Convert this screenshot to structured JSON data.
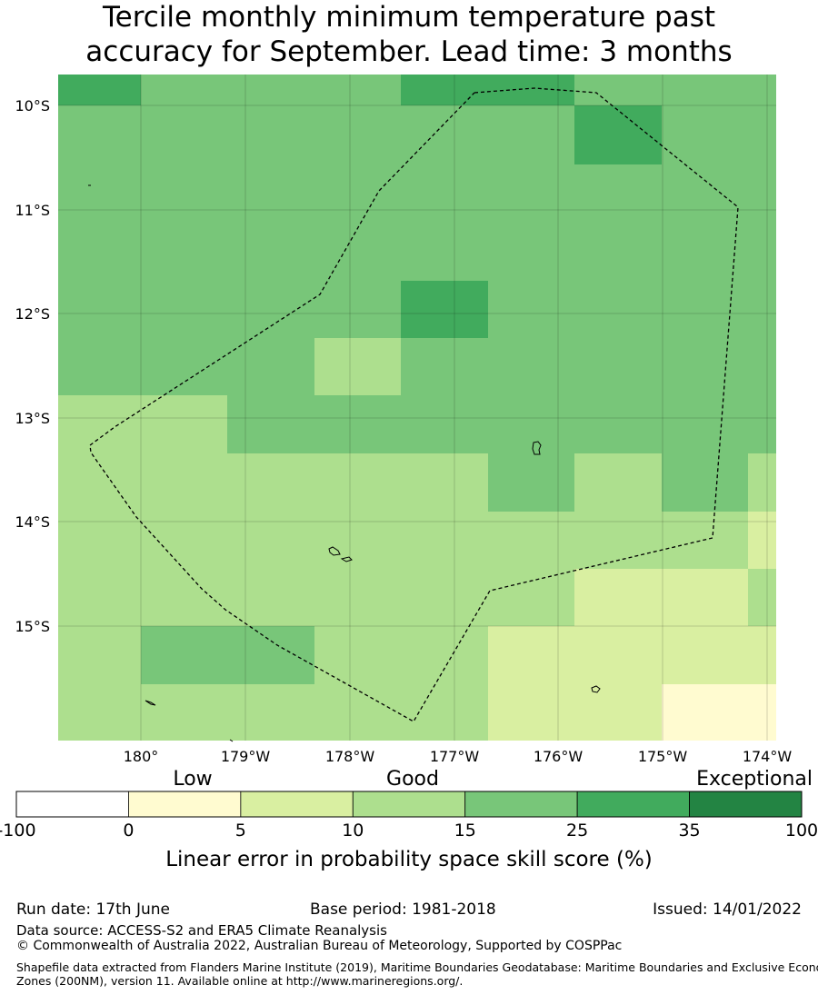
{
  "title": {
    "line1": "Tercile monthly minimum temperature past",
    "line2": "accuracy for September. Lead time: 3 months"
  },
  "map": {
    "lon_ticks": [
      "180°",
      "179°W",
      "178°W",
      "177°W",
      "176°W",
      "175°W",
      "174°W"
    ],
    "lat_ticks": [
      "10°S",
      "11°S",
      "12°S",
      "13°S",
      "14°S",
      "15°S"
    ],
    "lon_range": [
      179.2,
      185.7
    ],
    "lat_range": [
      -16.1,
      -9.7
    ],
    "colors": {
      "c0": "#fffbd0",
      "c1": "#d9efa1",
      "c2": "#addf8e",
      "c3": "#78c679",
      "c4": "#41ab5d",
      "c5": "#238443"
    },
    "grid": [
      [
        "c4",
        "c3",
        "c3",
        "c3",
        "c4",
        "c4",
        "c3",
        "c3",
        "c3"
      ],
      [
        "c3",
        "c3",
        "c3",
        "c3",
        "c3",
        "c3",
        "c4",
        "c3",
        "c3"
      ],
      [
        "c3",
        "c3",
        "c3",
        "c3",
        "c3",
        "c3",
        "c3",
        "c3",
        "c3"
      ],
      [
        "c3",
        "c3",
        "c3",
        "c3",
        "c3",
        "c3",
        "c3",
        "c3",
        "c3"
      ],
      [
        "c3",
        "c3",
        "c3",
        "c3",
        "c4",
        "c3",
        "c3",
        "c3",
        "c3"
      ],
      [
        "c3",
        "c3",
        "c3",
        "c2",
        "c3",
        "c3",
        "c3",
        "c3",
        "c3"
      ],
      [
        "c2",
        "c2",
        "c3",
        "c3",
        "c3",
        "c3",
        "c3",
        "c3",
        "c3"
      ],
      [
        "c2",
        "c2",
        "c2",
        "c2",
        "c2",
        "c3",
        "c2",
        "c3",
        "c2"
      ],
      [
        "c2",
        "c2",
        "c2",
        "c2",
        "c2",
        "c2",
        "c2",
        "c2",
        "c1"
      ],
      [
        "c2",
        "c2",
        "c2",
        "c2",
        "c2",
        "c2",
        "c1",
        "c1",
        "c2"
      ],
      [
        "c2",
        "c3",
        "c3",
        "c2",
        "c2",
        "c1",
        "c1",
        "c1",
        "c1"
      ],
      [
        "c2",
        "c2",
        "c2",
        "c2",
        "c2",
        "c1",
        "c1",
        "c0",
        "c0"
      ]
    ]
  },
  "colorbar": {
    "categories": [
      "Low",
      "Good",
      "Exceptional"
    ],
    "boundaries": [
      "-100",
      "0",
      "5",
      "10",
      "15",
      "25",
      "35",
      "100"
    ],
    "colors": [
      "#ffffff",
      "#fffbd0",
      "#d9efa1",
      "#addf8e",
      "#78c679",
      "#41ab5d",
      "#238443"
    ],
    "title": "Linear error in probability space skill score (%)"
  },
  "footer": {
    "run_date": "Run date: 17th June",
    "base_period": "Base period: 1981-2018",
    "issued": "Issued: 14/01/2022",
    "data_source": "Data source: ACCESS-S2 and ERA5 Climate Reanalysis",
    "copyright": "© Commonwealth of Australia 2022, Australian Bureau of Meteorology, Supported by COSPPac",
    "shapefile_line1": "Shapefile data extracted from Flanders Marine Institute (2019), Maritime Boundaries Geodatabase: Maritime Boundaries and Exclusive Economic",
    "shapefile_line2": "Zones (200NM), version 11. Available online at http://www.marineregions.org/."
  }
}
